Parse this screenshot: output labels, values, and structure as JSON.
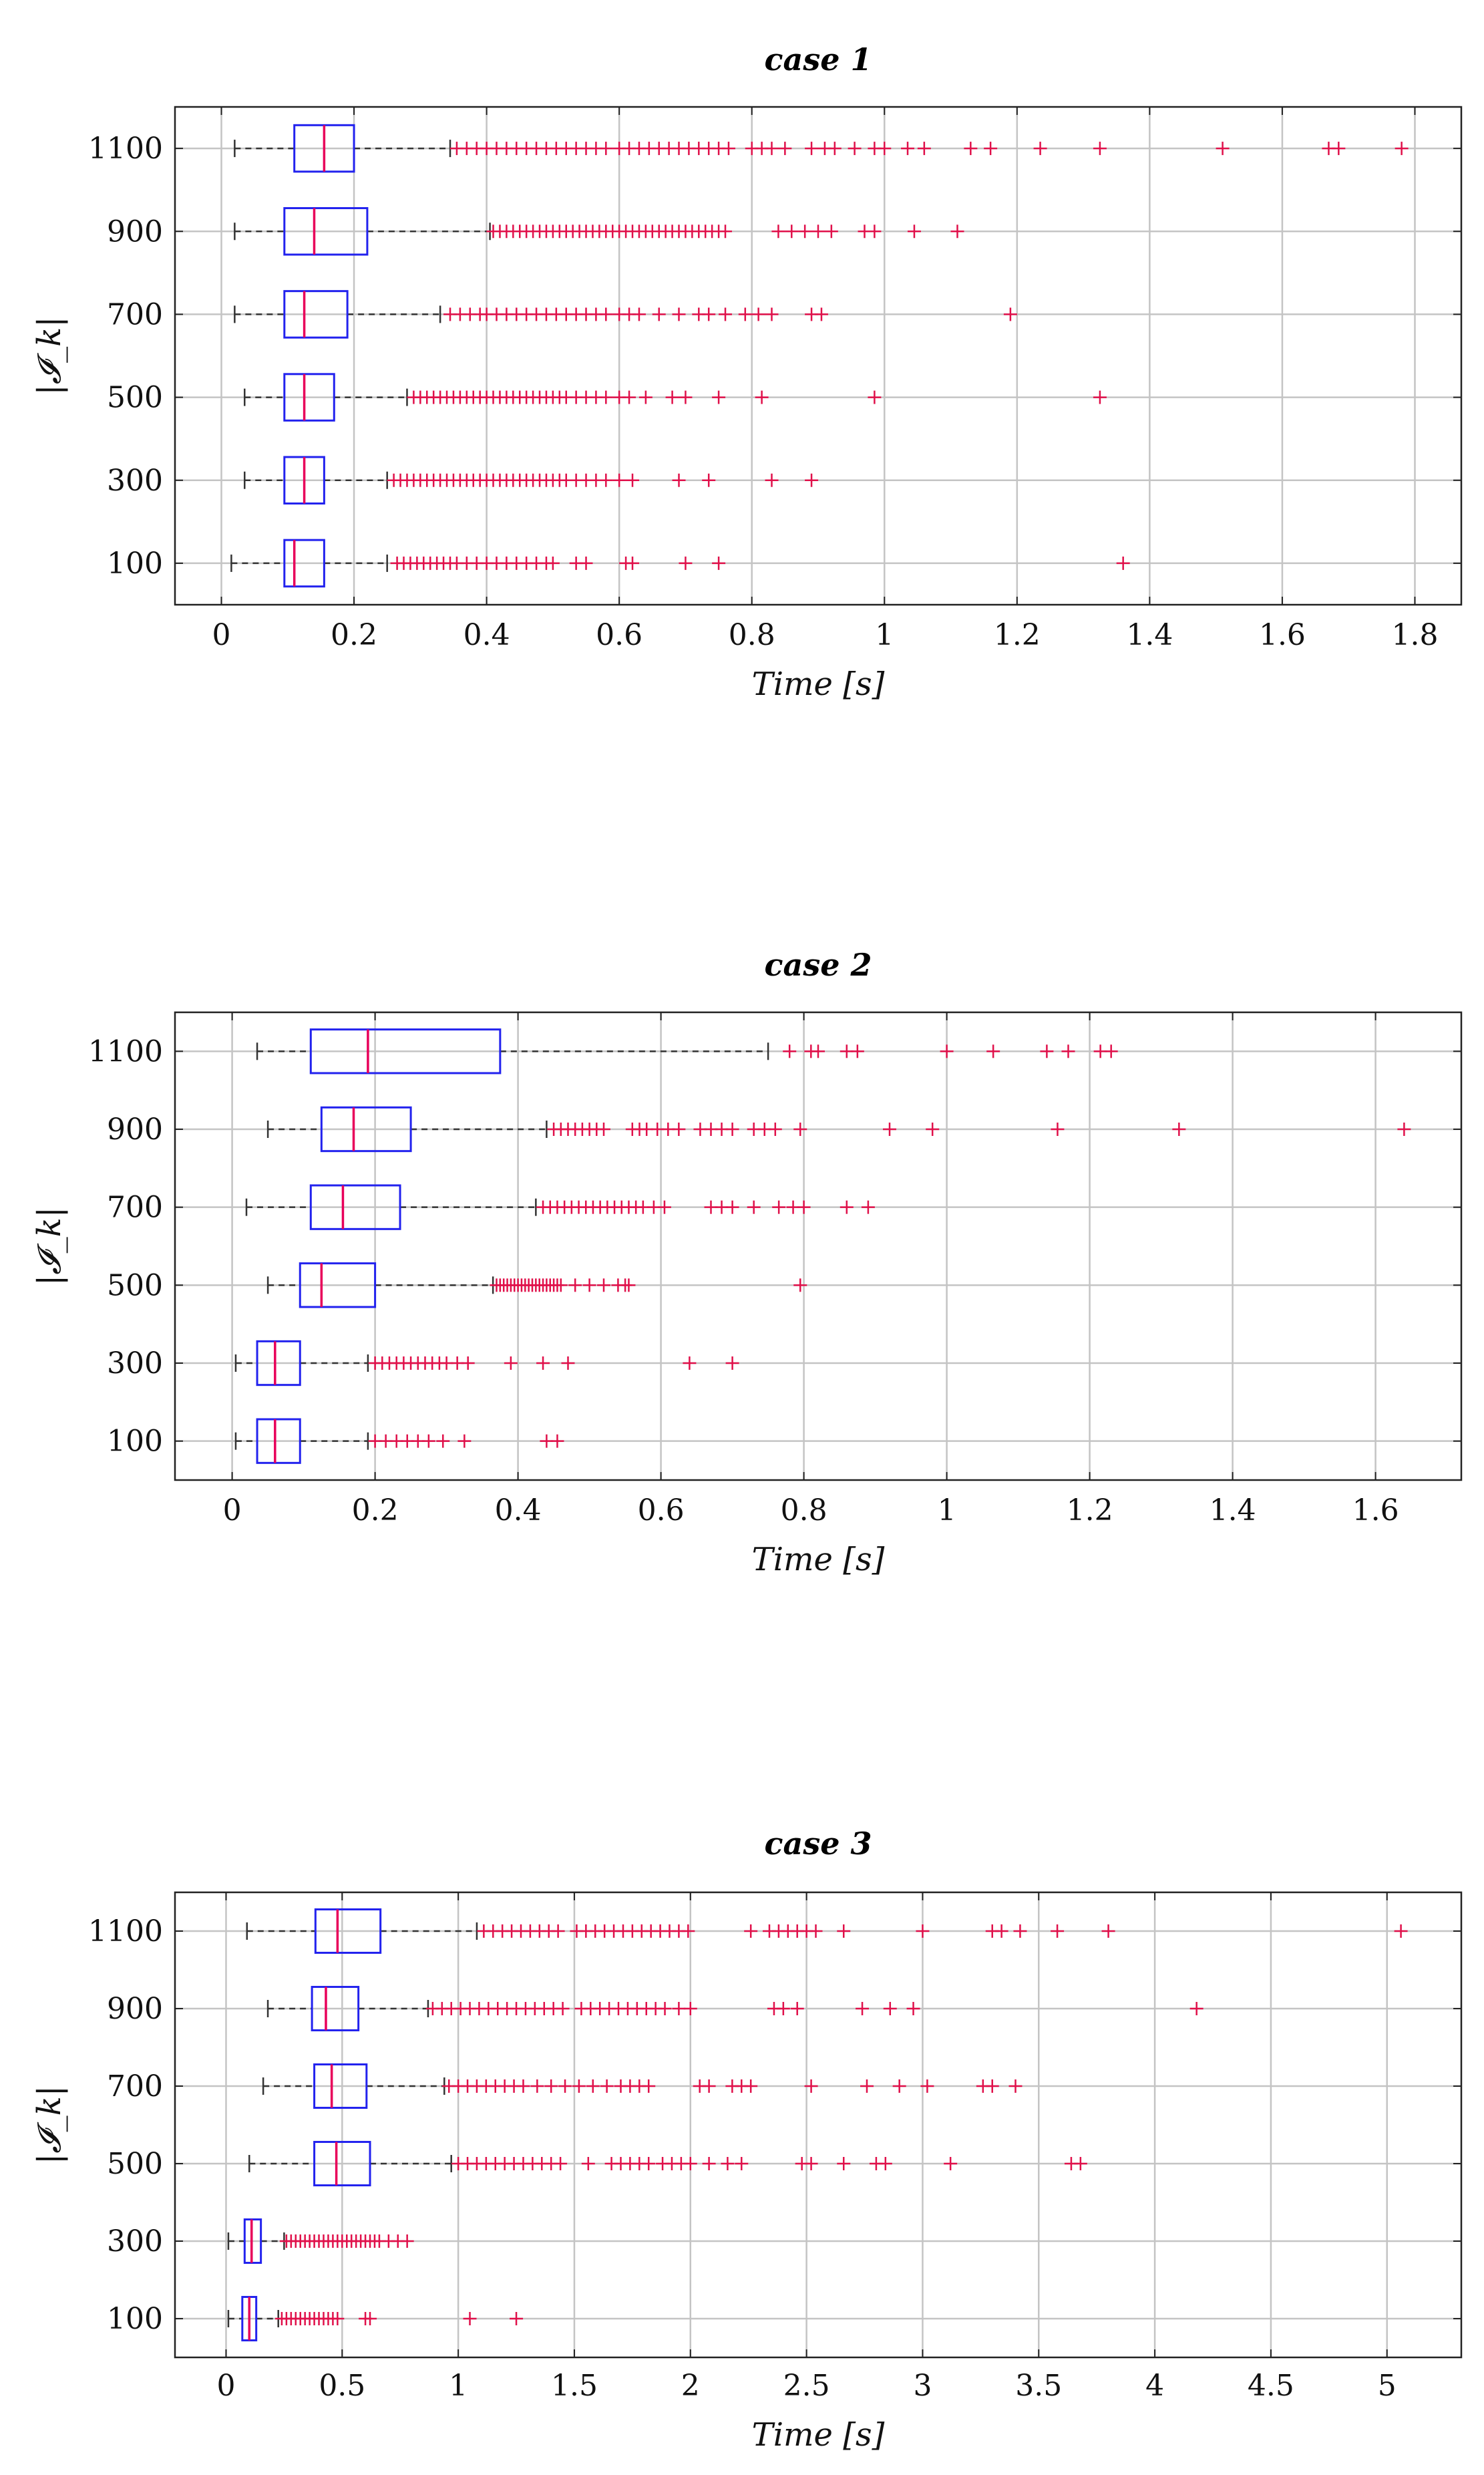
{
  "figure": {
    "background": "#ffffff",
    "colors": {
      "box": "#2222ee",
      "median": "#e8005a",
      "outlier": "#e0104a",
      "whisker": "#333333",
      "grid": "#c4c4c4"
    }
  },
  "chart_data": [
    {
      "type": "boxplot",
      "orientation": "horizontal",
      "title": "case 1",
      "xlabel": "Time [s]",
      "ylabel": "|𝓘_k|",
      "xlim": [
        -0.07,
        1.87
      ],
      "xticks": [
        0,
        0.2,
        0.4,
        0.6,
        0.8,
        1,
        1.2,
        1.4,
        1.6,
        1.8
      ],
      "xtick_labels": [
        "0",
        "0.2",
        "0.4",
        "0.6",
        "0.8",
        "1",
        "1.2",
        "1.4",
        "1.6",
        "1.8"
      ],
      "grid": true,
      "categories": [
        "100",
        "300",
        "500",
        "700",
        "900",
        "1100"
      ],
      "boxes": [
        {
          "label": "100",
          "whisker_low": 0.015,
          "q1": 0.095,
          "median": 0.11,
          "q3": 0.155,
          "whisker_high": 0.25,
          "outliers": [
            0.265,
            0.275,
            0.285,
            0.295,
            0.305,
            0.315,
            0.325,
            0.335,
            0.345,
            0.355,
            0.37,
            0.385,
            0.4,
            0.415,
            0.43,
            0.445,
            0.46,
            0.475,
            0.49,
            0.5,
            0.535,
            0.55,
            0.61,
            0.62,
            0.7,
            0.75,
            1.36
          ]
        },
        {
          "label": "300",
          "whisker_low": 0.035,
          "q1": 0.095,
          "median": 0.125,
          "q3": 0.155,
          "whisker_high": 0.25,
          "outliers": [
            0.26,
            0.27,
            0.28,
            0.29,
            0.3,
            0.31,
            0.32,
            0.33,
            0.34,
            0.35,
            0.36,
            0.37,
            0.38,
            0.39,
            0.4,
            0.41,
            0.42,
            0.43,
            0.44,
            0.45,
            0.46,
            0.47,
            0.48,
            0.49,
            0.5,
            0.51,
            0.52,
            0.535,
            0.55,
            0.565,
            0.58,
            0.6,
            0.62,
            0.69,
            0.735,
            0.83,
            0.89
          ]
        },
        {
          "label": "500",
          "whisker_low": 0.035,
          "q1": 0.095,
          "median": 0.125,
          "q3": 0.17,
          "whisker_high": 0.28,
          "outliers": [
            0.29,
            0.3,
            0.31,
            0.32,
            0.33,
            0.34,
            0.35,
            0.36,
            0.37,
            0.38,
            0.39,
            0.4,
            0.41,
            0.42,
            0.43,
            0.44,
            0.45,
            0.46,
            0.47,
            0.48,
            0.49,
            0.5,
            0.51,
            0.52,
            0.535,
            0.55,
            0.565,
            0.58,
            0.6,
            0.615,
            0.64,
            0.68,
            0.7,
            0.75,
            0.815,
            0.985,
            1.325
          ]
        },
        {
          "label": "700",
          "whisker_low": 0.02,
          "q1": 0.095,
          "median": 0.125,
          "q3": 0.19,
          "whisker_high": 0.33,
          "outliers": [
            0.345,
            0.36,
            0.375,
            0.39,
            0.4,
            0.415,
            0.43,
            0.445,
            0.46,
            0.475,
            0.49,
            0.505,
            0.52,
            0.535,
            0.55,
            0.565,
            0.58,
            0.6,
            0.615,
            0.63,
            0.66,
            0.69,
            0.72,
            0.735,
            0.76,
            0.79,
            0.81,
            0.83,
            0.89,
            0.905,
            1.19
          ]
        },
        {
          "label": "900",
          "whisker_low": 0.02,
          "q1": 0.095,
          "median": 0.14,
          "q3": 0.22,
          "whisker_high": 0.405,
          "outliers": [
            0.41,
            0.42,
            0.43,
            0.44,
            0.45,
            0.46,
            0.47,
            0.48,
            0.49,
            0.5,
            0.51,
            0.52,
            0.53,
            0.54,
            0.55,
            0.56,
            0.57,
            0.58,
            0.59,
            0.6,
            0.61,
            0.62,
            0.63,
            0.64,
            0.65,
            0.66,
            0.67,
            0.68,
            0.69,
            0.7,
            0.71,
            0.72,
            0.73,
            0.74,
            0.75,
            0.76,
            0.84,
            0.86,
            0.88,
            0.9,
            0.92,
            0.97,
            0.985,
            1.045,
            1.11
          ]
        },
        {
          "label": "1100",
          "whisker_low": 0.02,
          "q1": 0.11,
          "median": 0.155,
          "q3": 0.2,
          "whisker_high": 0.345,
          "outliers": [
            0.355,
            0.37,
            0.385,
            0.4,
            0.415,
            0.43,
            0.445,
            0.46,
            0.475,
            0.49,
            0.505,
            0.52,
            0.535,
            0.55,
            0.565,
            0.58,
            0.6,
            0.615,
            0.63,
            0.645,
            0.66,
            0.675,
            0.69,
            0.705,
            0.72,
            0.735,
            0.75,
            0.765,
            0.8,
            0.815,
            0.83,
            0.85,
            0.89,
            0.91,
            0.925,
            0.955,
            0.985,
            1.0,
            1.035,
            1.06,
            1.13,
            1.16,
            1.235,
            1.325,
            1.51,
            1.67,
            1.685,
            1.78
          ]
        }
      ]
    },
    {
      "type": "boxplot",
      "orientation": "horizontal",
      "title": "case 2",
      "xlabel": "Time [s]",
      "ylabel": "|𝓘_k|",
      "xlim": [
        -0.08,
        1.72
      ],
      "xticks": [
        0,
        0.2,
        0.4,
        0.6,
        0.8,
        1,
        1.2,
        1.4,
        1.6
      ],
      "xtick_labels": [
        "0",
        "0.2",
        "0.4",
        "0.6",
        "0.8",
        "1",
        "1.2",
        "1.4",
        "1.6"
      ],
      "grid": true,
      "categories": [
        "100",
        "300",
        "500",
        "700",
        "900",
        "1100"
      ],
      "boxes": [
        {
          "label": "100",
          "whisker_low": 0.005,
          "q1": 0.035,
          "median": 0.06,
          "q3": 0.095,
          "whisker_high": 0.19,
          "outliers": [
            0.2,
            0.215,
            0.23,
            0.245,
            0.26,
            0.275,
            0.295,
            0.325,
            0.44,
            0.455
          ]
        },
        {
          "label": "300",
          "whisker_low": 0.005,
          "q1": 0.035,
          "median": 0.06,
          "q3": 0.095,
          "whisker_high": 0.19,
          "outliers": [
            0.2,
            0.21,
            0.22,
            0.23,
            0.24,
            0.25,
            0.26,
            0.27,
            0.28,
            0.29,
            0.3,
            0.315,
            0.33,
            0.39,
            0.435,
            0.47,
            0.64,
            0.7
          ]
        },
        {
          "label": "500",
          "whisker_low": 0.05,
          "q1": 0.095,
          "median": 0.125,
          "q3": 0.2,
          "whisker_high": 0.365,
          "outliers": [
            0.37,
            0.375,
            0.38,
            0.385,
            0.39,
            0.395,
            0.4,
            0.405,
            0.41,
            0.415,
            0.42,
            0.425,
            0.43,
            0.435,
            0.44,
            0.445,
            0.45,
            0.455,
            0.46,
            0.48,
            0.5,
            0.52,
            0.54,
            0.55,
            0.555,
            0.795
          ]
        },
        {
          "label": "700",
          "whisker_low": 0.02,
          "q1": 0.11,
          "median": 0.155,
          "q3": 0.235,
          "whisker_high": 0.425,
          "outliers": [
            0.435,
            0.445,
            0.455,
            0.465,
            0.475,
            0.485,
            0.495,
            0.505,
            0.515,
            0.525,
            0.535,
            0.545,
            0.555,
            0.565,
            0.575,
            0.59,
            0.605,
            0.67,
            0.685,
            0.7,
            0.73,
            0.765,
            0.785,
            0.8,
            0.86,
            0.89
          ]
        },
        {
          "label": "900",
          "whisker_low": 0.05,
          "q1": 0.125,
          "median": 0.17,
          "q3": 0.25,
          "whisker_high": 0.44,
          "outliers": [
            0.45,
            0.46,
            0.47,
            0.48,
            0.49,
            0.5,
            0.51,
            0.52,
            0.56,
            0.57,
            0.58,
            0.595,
            0.61,
            0.625,
            0.655,
            0.67,
            0.685,
            0.7,
            0.73,
            0.745,
            0.76,
            0.795,
            0.92,
            0.98,
            1.155,
            1.325,
            1.64
          ]
        },
        {
          "label": "1100",
          "whisker_low": 0.035,
          "q1": 0.11,
          "median": 0.19,
          "q3": 0.375,
          "whisker_high": 0.75,
          "outliers": [
            0.78,
            0.81,
            0.82,
            0.86,
            0.875,
            1.0,
            1.065,
            1.14,
            1.17,
            1.215,
            1.23
          ]
        }
      ]
    },
    {
      "type": "boxplot",
      "orientation": "horizontal",
      "title": "case 3",
      "xlabel": "Time [s]",
      "ylabel": "|𝓘_k|",
      "xlim": [
        -0.22,
        5.32
      ],
      "xticks": [
        0,
        0.5,
        1,
        1.5,
        2,
        2.5,
        3,
        3.5,
        4,
        4.5,
        5
      ],
      "xtick_labels": [
        "0",
        "0.5",
        "1",
        "1.5",
        "2",
        "2.5",
        "3",
        "3.5",
        "4",
        "4.5",
        "5"
      ],
      "grid": true,
      "categories": [
        "100",
        "300",
        "500",
        "700",
        "900",
        "1100"
      ],
      "boxes": [
        {
          "label": "100",
          "whisker_low": 0.01,
          "q1": 0.07,
          "median": 0.1,
          "q3": 0.13,
          "whisker_high": 0.225,
          "outliers": [
            0.24,
            0.26,
            0.28,
            0.3,
            0.32,
            0.34,
            0.36,
            0.38,
            0.4,
            0.42,
            0.44,
            0.46,
            0.48,
            0.6,
            0.62,
            1.05,
            1.25
          ]
        },
        {
          "label": "300",
          "whisker_low": 0.01,
          "q1": 0.08,
          "median": 0.11,
          "q3": 0.15,
          "whisker_high": 0.25,
          "outliers": [
            0.26,
            0.28,
            0.3,
            0.32,
            0.34,
            0.36,
            0.38,
            0.4,
            0.42,
            0.44,
            0.46,
            0.48,
            0.5,
            0.52,
            0.54,
            0.56,
            0.58,
            0.6,
            0.62,
            0.64,
            0.66,
            0.7,
            0.74,
            0.78
          ]
        },
        {
          "label": "500",
          "whisker_low": 0.1,
          "q1": 0.38,
          "median": 0.475,
          "q3": 0.62,
          "whisker_high": 0.97,
          "outliers": [
            1.0,
            1.04,
            1.08,
            1.12,
            1.16,
            1.2,
            1.24,
            1.28,
            1.32,
            1.36,
            1.4,
            1.44,
            1.56,
            1.66,
            1.7,
            1.74,
            1.78,
            1.82,
            1.88,
            1.92,
            1.96,
            2.0,
            2.08,
            2.16,
            2.22,
            2.48,
            2.52,
            2.66,
            2.8,
            2.84,
            3.12,
            3.64,
            3.68
          ]
        },
        {
          "label": "700",
          "whisker_low": 0.16,
          "q1": 0.38,
          "median": 0.455,
          "q3": 0.605,
          "whisker_high": 0.94,
          "outliers": [
            0.96,
            1.0,
            1.04,
            1.08,
            1.12,
            1.16,
            1.2,
            1.24,
            1.28,
            1.34,
            1.4,
            1.46,
            1.52,
            1.58,
            1.64,
            1.7,
            1.74,
            1.78,
            1.82,
            2.04,
            2.08,
            2.18,
            2.22,
            2.26,
            2.52,
            2.76,
            2.9,
            3.02,
            3.26,
            3.3,
            3.4
          ]
        },
        {
          "label": "900",
          "whisker_low": 0.18,
          "q1": 0.37,
          "median": 0.43,
          "q3": 0.57,
          "whisker_high": 0.87,
          "outliers": [
            0.89,
            0.93,
            0.97,
            1.01,
            1.05,
            1.09,
            1.13,
            1.17,
            1.21,
            1.25,
            1.29,
            1.33,
            1.37,
            1.41,
            1.45,
            1.53,
            1.57,
            1.61,
            1.65,
            1.69,
            1.73,
            1.77,
            1.81,
            1.85,
            1.89,
            1.95,
            2.0,
            2.36,
            2.4,
            2.46,
            2.74,
            2.86,
            2.96,
            4.18
          ]
        },
        {
          "label": "1100",
          "whisker_low": 0.09,
          "q1": 0.385,
          "median": 0.48,
          "q3": 0.665,
          "whisker_high": 1.08,
          "outliers": [
            1.11,
            1.15,
            1.19,
            1.23,
            1.27,
            1.31,
            1.35,
            1.39,
            1.43,
            1.51,
            1.55,
            1.59,
            1.63,
            1.67,
            1.71,
            1.75,
            1.79,
            1.83,
            1.87,
            1.91,
            1.95,
            1.99,
            2.26,
            2.34,
            2.38,
            2.42,
            2.46,
            2.5,
            2.54,
            2.66,
            3.0,
            3.3,
            3.34,
            3.42,
            3.58,
            3.8,
            5.06
          ]
        }
      ]
    }
  ]
}
